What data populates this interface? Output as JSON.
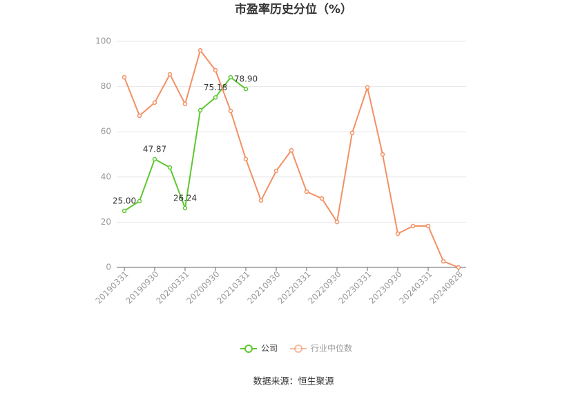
{
  "chart_data": {
    "type": "line",
    "title": "市盈率历史分位（%）",
    "categories": [
      "20190331",
      null,
      "20190930",
      null,
      "20200331",
      null,
      "20200930",
      null,
      "20210331",
      null,
      "20210930",
      null,
      "20220331",
      null,
      "20220930",
      null,
      "20230331",
      null,
      "20230930",
      null,
      "20240331",
      null,
      "20240828"
    ],
    "series": [
      {
        "name": "公司",
        "color": "#5cc72e",
        "values": [
          25.0,
          29.3,
          47.87,
          44.2,
          26.24,
          69.5,
          75.18,
          84.1,
          78.9,
          null,
          null,
          null,
          null,
          null,
          null,
          null,
          null,
          null,
          null,
          null,
          null,
          null,
          null
        ],
        "value_labels": [
          "25.00",
          null,
          "47.87",
          null,
          "26.24",
          null,
          "75.18",
          null,
          "78.90",
          null,
          null,
          null,
          null,
          null,
          null,
          null,
          null,
          null,
          null,
          null,
          null,
          null,
          null
        ]
      },
      {
        "name": "行业中位数",
        "color": "#f39064",
        "values": [
          84.1,
          67.1,
          72.9,
          85.4,
          72.3,
          96.0,
          87.2,
          69.2,
          47.9,
          29.6,
          42.7,
          51.8,
          33.5,
          30.5,
          20.1,
          59.5,
          79.6,
          50.0,
          14.9,
          18.3,
          18.3,
          2.7,
          0
        ]
      }
    ],
    "ylim": [
      0,
      100
    ],
    "yticks": [
      0,
      20,
      40,
      60,
      80,
      100
    ],
    "grid": true,
    "source": "数据来源：恒生聚源"
  }
}
